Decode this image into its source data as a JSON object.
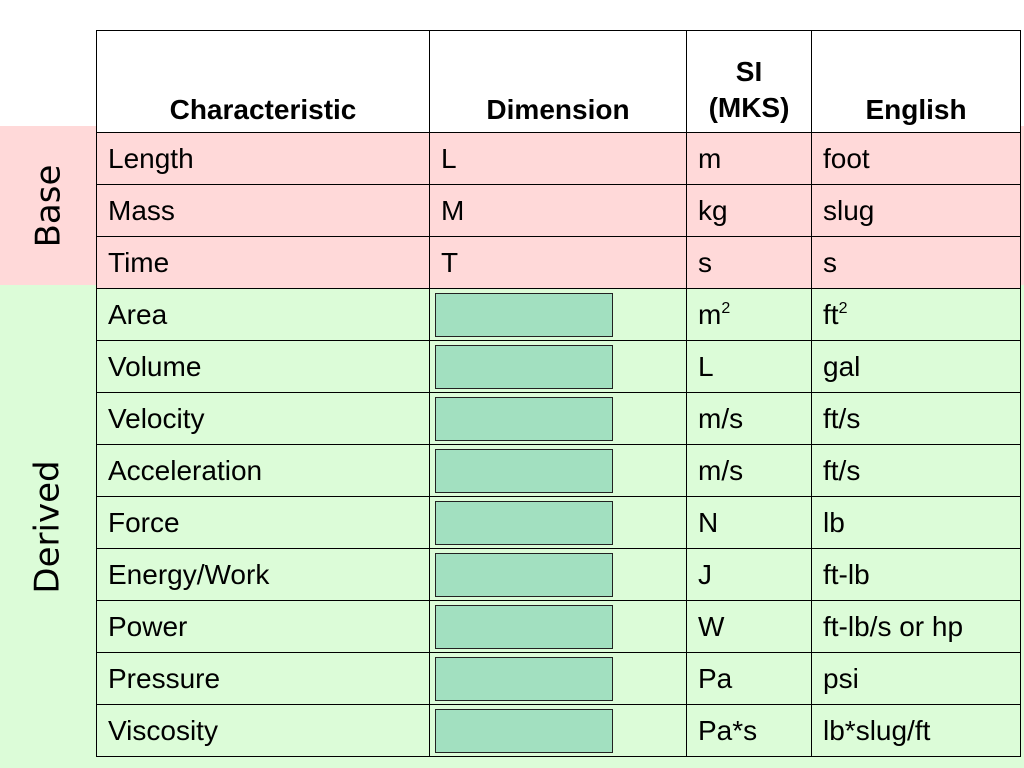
{
  "table": {
    "headers": {
      "characteristic": "Characteristic",
      "dimension": "Dimension",
      "si_line1": "SI",
      "si_line2": "(MKS)",
      "english": "English"
    },
    "groups": {
      "base": "Base",
      "derived": "Derived"
    },
    "base_rows": [
      {
        "characteristic": "Length",
        "dimension": "L",
        "si": "m",
        "english": "foot"
      },
      {
        "characteristic": "Mass",
        "dimension": "M",
        "si": "kg",
        "english": "slug"
      },
      {
        "characteristic": "Time",
        "dimension": "T",
        "si": "s",
        "english": "s"
      }
    ],
    "derived_rows": [
      {
        "characteristic": "Area",
        "si": "m",
        "si_sup": "2",
        "english": "ft",
        "english_sup": "2"
      },
      {
        "characteristic": "Volume",
        "si": "L",
        "english": "gal"
      },
      {
        "characteristic": "Velocity",
        "si": "m/s",
        "english": "ft/s"
      },
      {
        "characteristic": "Acceleration",
        "si": "m/s",
        "english": "ft/s"
      },
      {
        "characteristic": "Force",
        "si": "N",
        "english": "lb"
      },
      {
        "characteristic": "Energy/Work",
        "si": "J",
        "english": "ft-lb"
      },
      {
        "characteristic": "Power",
        "si": "W",
        "english": "ft-lb/s or hp"
      },
      {
        "characteristic": "Pressure",
        "si": "Pa",
        "english": "psi"
      },
      {
        "characteristic": "Viscosity",
        "si": "Pa*s",
        "english": "lb*slug/ft"
      }
    ],
    "colors": {
      "base_band": "#ffd9d9",
      "derived_band": "#dcfcd8",
      "dimension_box": "#a2e0c0"
    }
  }
}
